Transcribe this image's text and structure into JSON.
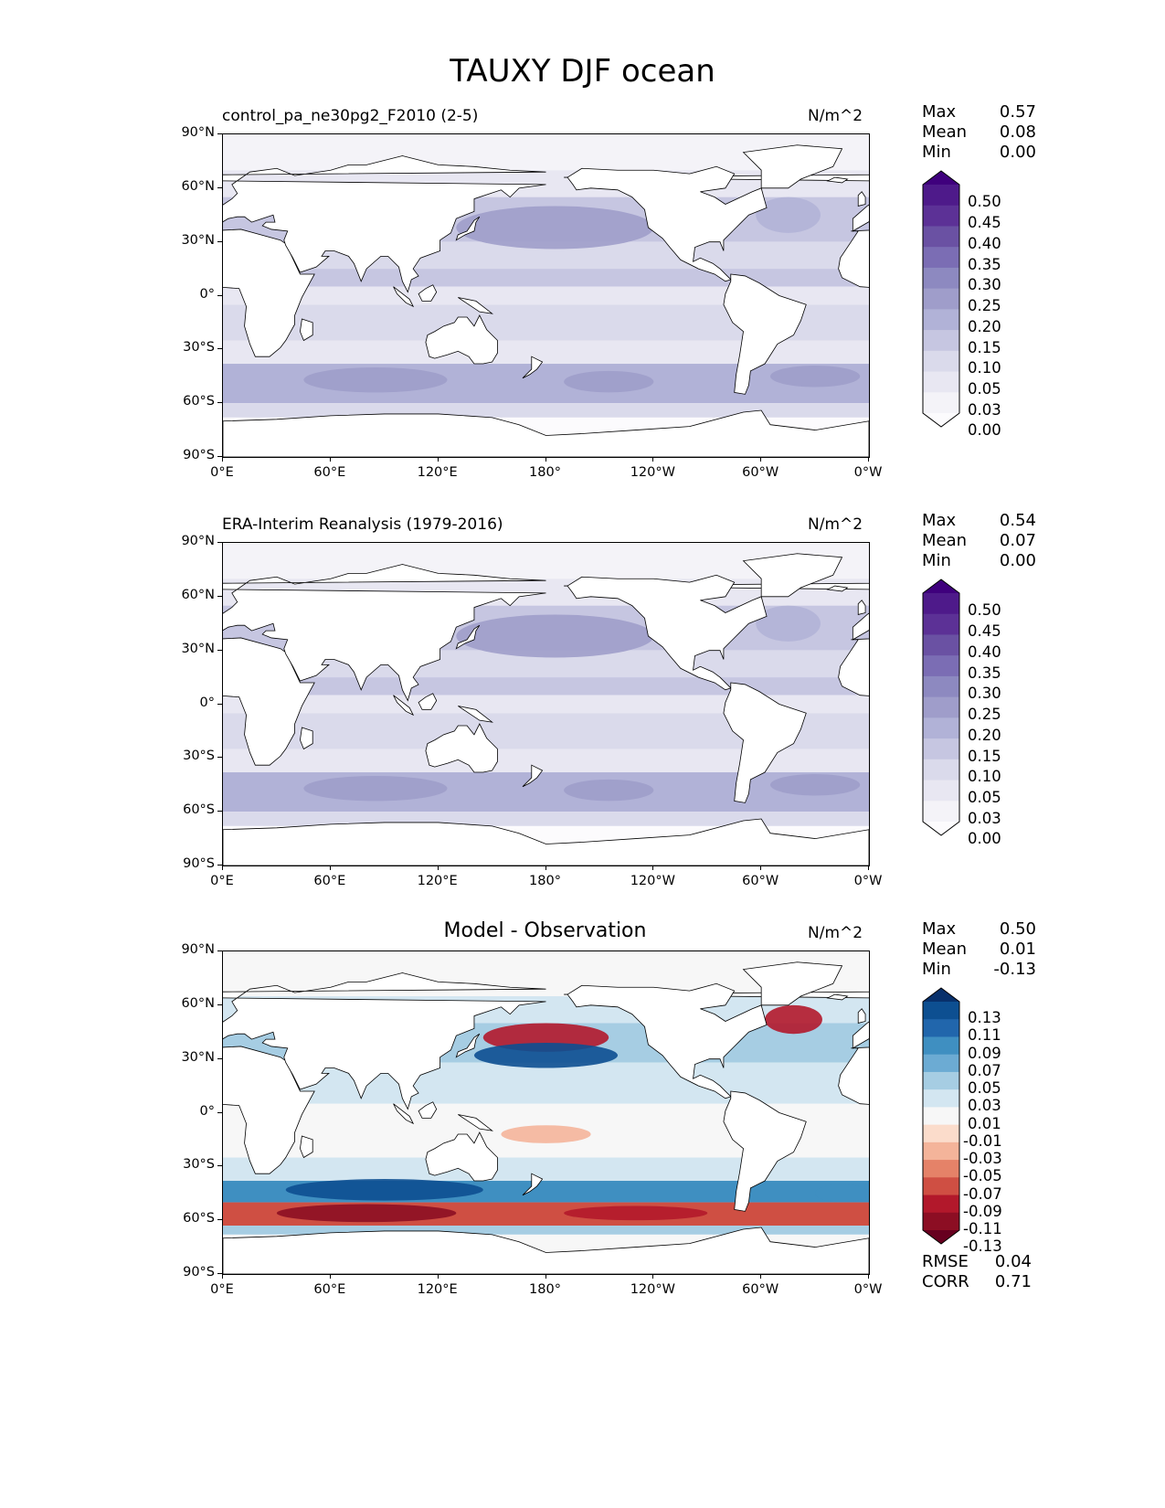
{
  "figure": {
    "title": "TAUXY DJF ocean"
  },
  "panels": [
    {
      "title": "control_pa_ne30pg2_F2010 (2-5)",
      "units": "N/m^2",
      "stats": [
        {
          "label": "Max",
          "value": "0.57"
        },
        {
          "label": "Mean",
          "value": "0.08"
        },
        {
          "label": "Min",
          "value": "0.00"
        }
      ],
      "colorbar": {
        "labels": [
          "0.50",
          "0.45",
          "0.40",
          "0.35",
          "0.30",
          "0.25",
          "0.20",
          "0.15",
          "0.10",
          "0.05",
          "0.03",
          "0.00"
        ],
        "colors": [
          "#3f007d",
          "#4e1a8a",
          "#5c3196",
          "#6a51a3",
          "#7b6db4",
          "#8d89c0",
          "#9f9dca",
          "#b1b2d7",
          "#c6c6e1",
          "#dadaeb",
          "#e8e7f2",
          "#f4f3f8",
          "#fcfbfd"
        ],
        "top_color": "#3f007d",
        "bottom_color": "#fcfbfd"
      }
    },
    {
      "title": "ERA-Interim Reanalysis (1979-2016)",
      "units": "N/m^2",
      "stats": [
        {
          "label": "Max",
          "value": "0.54"
        },
        {
          "label": "Mean",
          "value": "0.07"
        },
        {
          "label": "Min",
          "value": "0.00"
        }
      ],
      "colorbar": {
        "labels": [
          "0.50",
          "0.45",
          "0.40",
          "0.35",
          "0.30",
          "0.25",
          "0.20",
          "0.15",
          "0.10",
          "0.05",
          "0.03",
          "0.00"
        ],
        "colors": [
          "#3f007d",
          "#4e1a8a",
          "#5c3196",
          "#6a51a3",
          "#7b6db4",
          "#8d89c0",
          "#9f9dca",
          "#b1b2d7",
          "#c6c6e1",
          "#dadaeb",
          "#e8e7f2",
          "#f4f3f8",
          "#fcfbfd"
        ],
        "top_color": "#3f007d",
        "bottom_color": "#fcfbfd"
      }
    },
    {
      "title": "Model - Observation",
      "units": "N/m^2",
      "stats": [
        {
          "label": "Max",
          "value": "0.50"
        },
        {
          "label": "Mean",
          "value": "0.01"
        },
        {
          "label": "Min",
          "value": "-0.13"
        }
      ],
      "extra_stats": [
        {
          "label": "RMSE",
          "value": "0.04"
        },
        {
          "label": "CORR",
          "value": "0.71"
        }
      ],
      "colorbar": {
        "labels": [
          "0.13",
          "0.11",
          "0.09",
          "0.07",
          "0.05",
          "0.03",
          "0.01",
          "-0.01",
          "-0.03",
          "-0.05",
          "-0.07",
          "-0.09",
          "-0.11",
          "-0.13"
        ],
        "colors": [
          "#08306b",
          "#0d4f91",
          "#2166ac",
          "#3f8fc1",
          "#6cabd3",
          "#a6cde3",
          "#d3e6f1",
          "#f7f7f7",
          "#fbdccb",
          "#f4b49a",
          "#e58268",
          "#cf4f43",
          "#b2182b",
          "#8c0e23",
          "#67001f"
        ],
        "top_color": "#08306b",
        "bottom_color": "#67001f"
      }
    }
  ],
  "axes": {
    "lat_ticks": [
      "90°N",
      "60°N",
      "30°N",
      "0°",
      "30°S",
      "60°S",
      "90°S"
    ],
    "lon_ticks": [
      "0°E",
      "60°E",
      "120°E",
      "180°",
      "120°W",
      "60°W",
      "0°W"
    ]
  },
  "chart_data": [
    {
      "type": "heatmap",
      "title": "control_pa_ne30pg2_F2010 (2-5)",
      "units": "N/m^2",
      "x_range": [
        0,
        360
      ],
      "y_range": [
        -90,
        90
      ],
      "color_levels": [
        0.0,
        0.03,
        0.05,
        0.1,
        0.15,
        0.2,
        0.25,
        0.3,
        0.35,
        0.4,
        0.45,
        0.5
      ],
      "max": 0.57,
      "mean": 0.08,
      "min": 0.0
    },
    {
      "type": "heatmap",
      "title": "ERA-Interim Reanalysis (1979-2016)",
      "units": "N/m^2",
      "x_range": [
        0,
        360
      ],
      "y_range": [
        -90,
        90
      ],
      "color_levels": [
        0.0,
        0.03,
        0.05,
        0.1,
        0.15,
        0.2,
        0.25,
        0.3,
        0.35,
        0.4,
        0.45,
        0.5
      ],
      "max": 0.54,
      "mean": 0.07,
      "min": 0.0
    },
    {
      "type": "heatmap",
      "title": "Model - Observation",
      "units": "N/m^2",
      "x_range": [
        0,
        360
      ],
      "y_range": [
        -90,
        90
      ],
      "color_levels": [
        -0.13,
        -0.11,
        -0.09,
        -0.07,
        -0.05,
        -0.03,
        -0.01,
        0.01,
        0.03,
        0.05,
        0.07,
        0.09,
        0.11,
        0.13
      ],
      "max": 0.5,
      "mean": 0.01,
      "min": -0.13,
      "rmse": 0.04,
      "corr": 0.71
    }
  ]
}
